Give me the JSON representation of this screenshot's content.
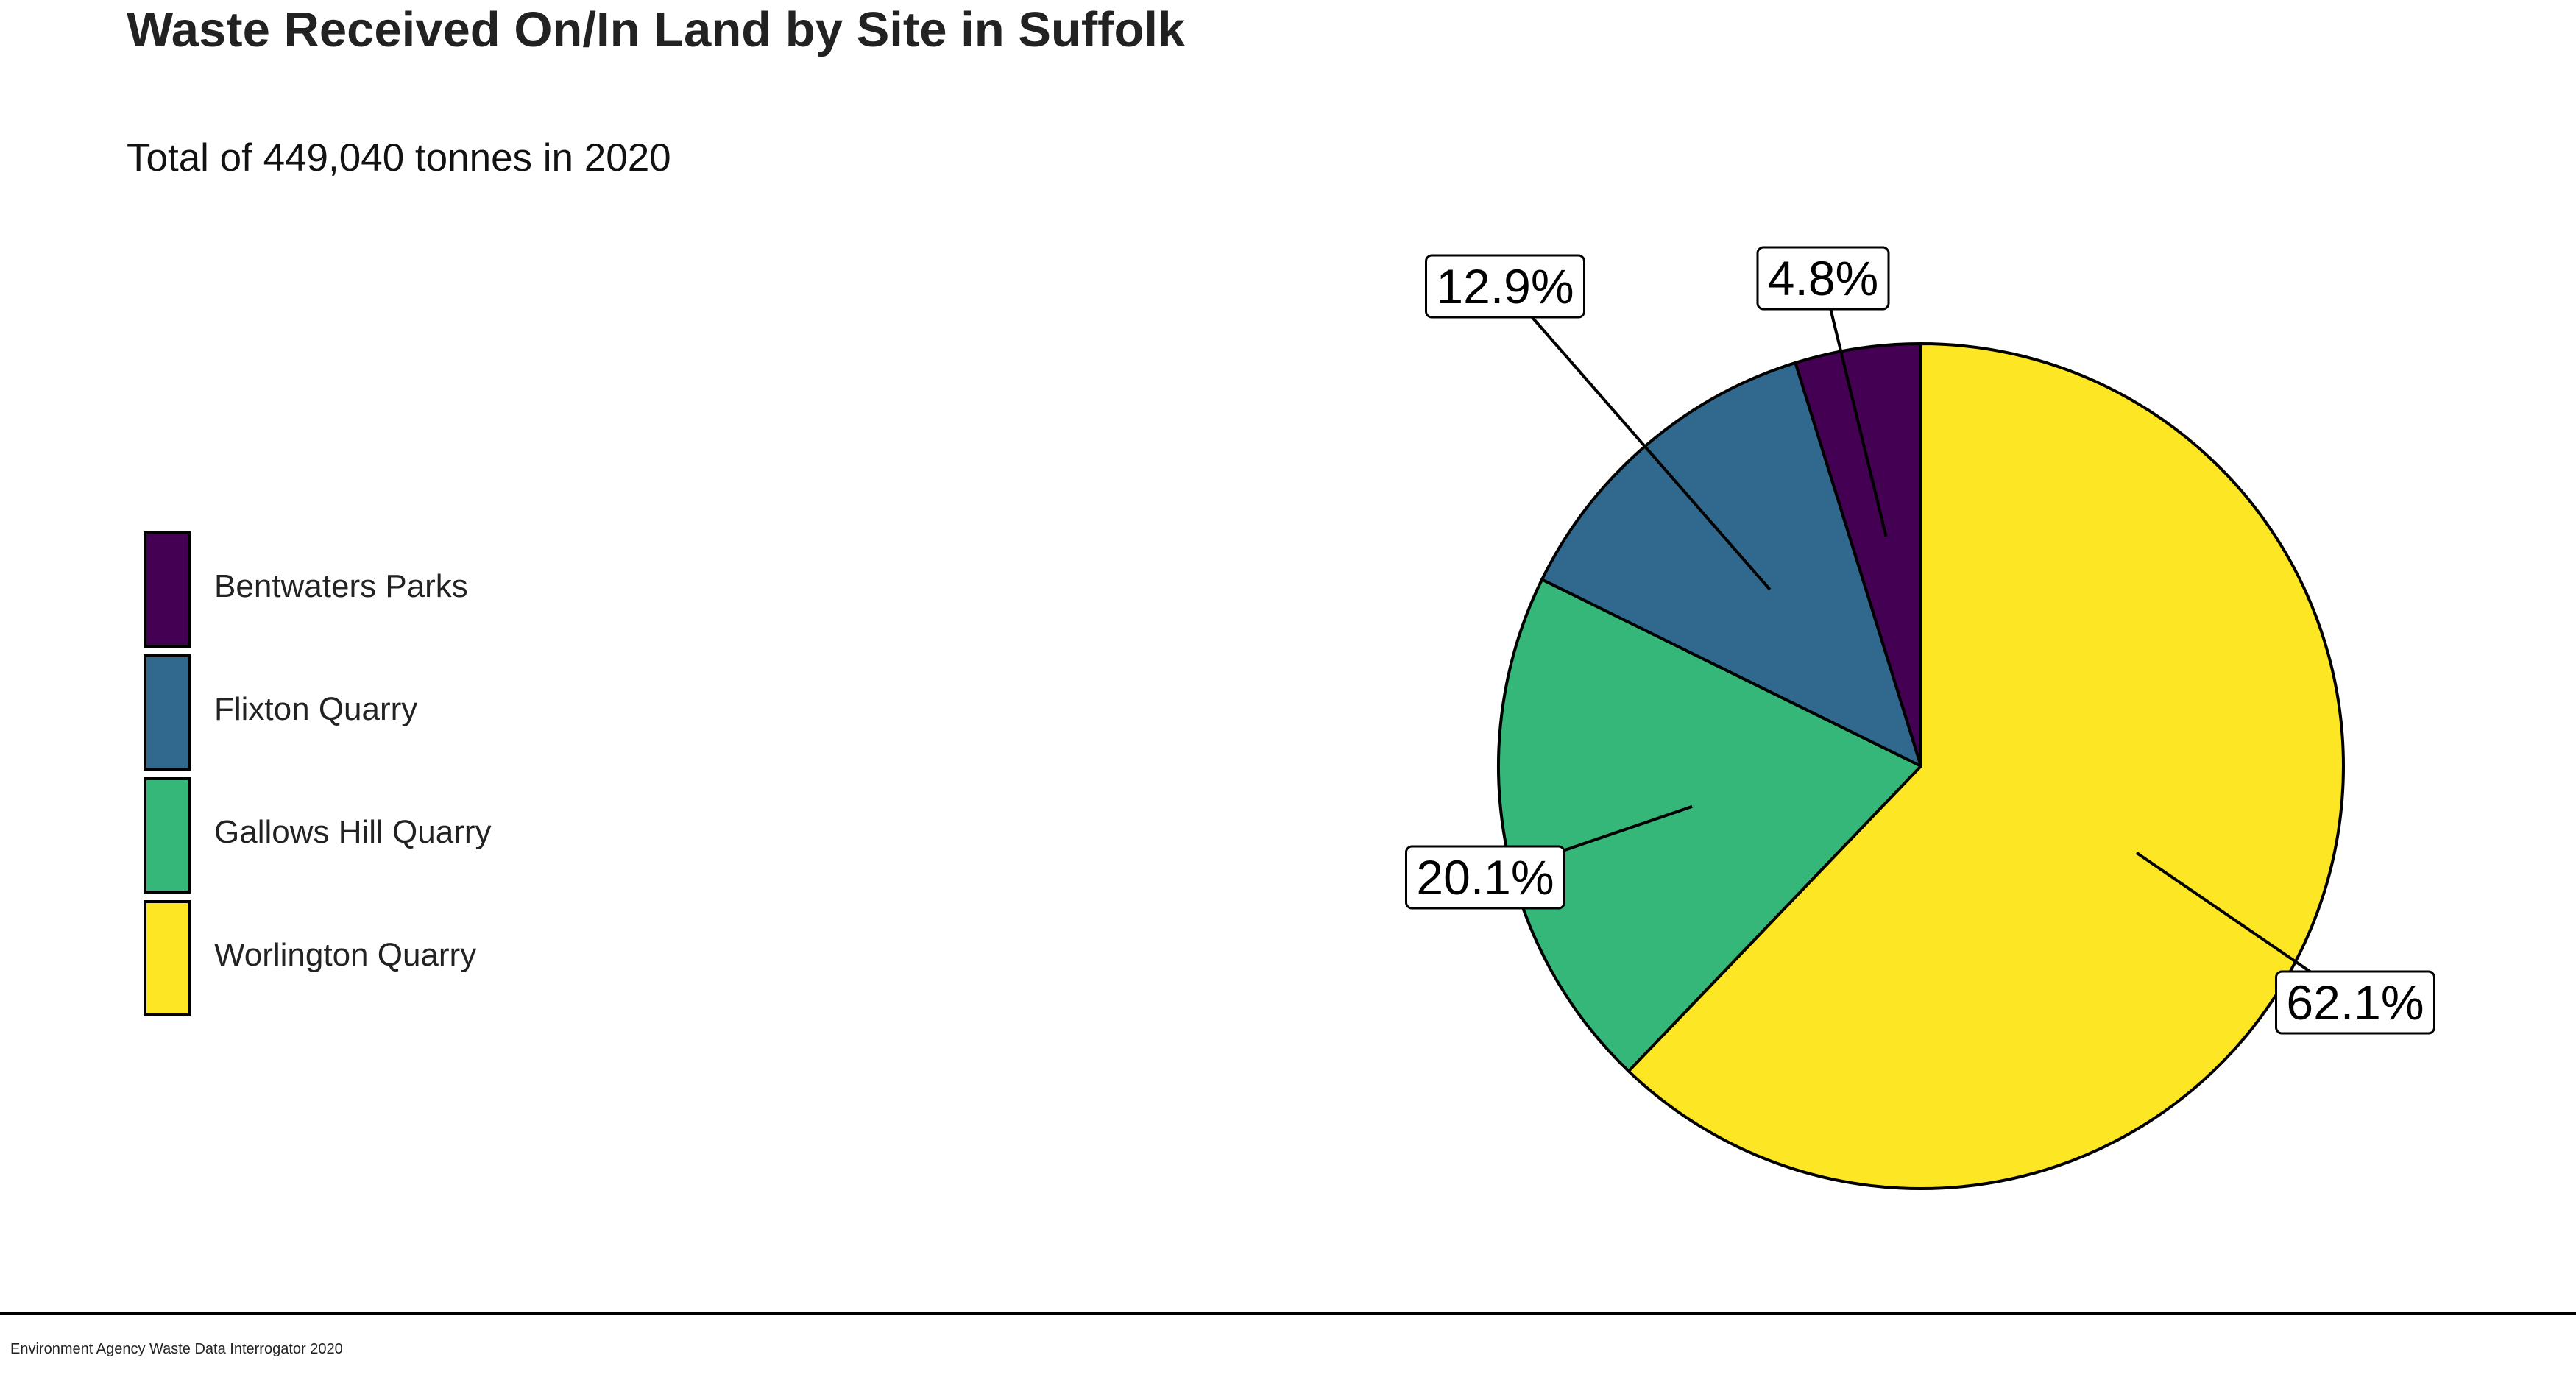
{
  "chart_data": {
    "type": "pie",
    "title": "Waste Received On/In Land by Site in Suffolk",
    "subtitle": "Total of 449,040 tonnes in 2020",
    "legend_position": "left",
    "slices": [
      {
        "name": "Bentwaters Parks",
        "percent": 4.8,
        "label": "4.8%",
        "color": "#440154"
      },
      {
        "name": "Flixton Quarry",
        "percent": 12.9,
        "label": "12.9%",
        "color": "#31688E"
      },
      {
        "name": "Gallows Hill Quarry",
        "percent": 20.1,
        "label": "20.1%",
        "color": "#35B779"
      },
      {
        "name": "Worlington Quarry",
        "percent": 62.1,
        "label": "62.1%",
        "color": "#FDE725"
      }
    ]
  },
  "caption": "Environment Agency Waste Data Interrogator 2020"
}
